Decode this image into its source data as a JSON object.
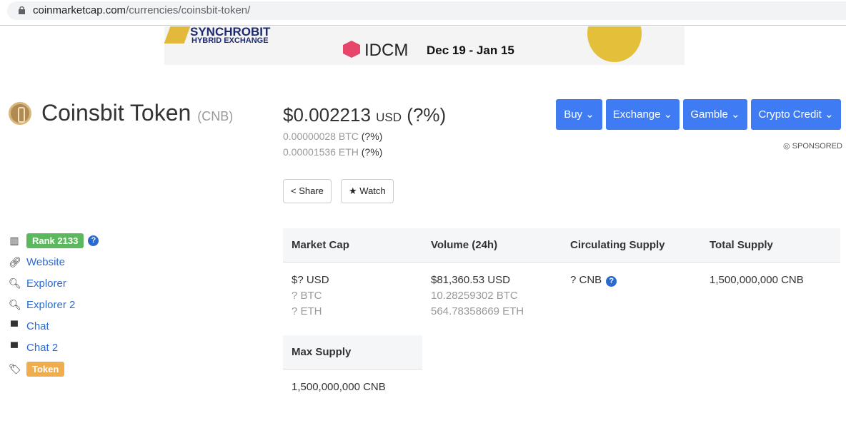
{
  "browser": {
    "url_host": "coinmarketcap.com",
    "url_path": "/currencies/coinsbit-token/"
  },
  "banner": {
    "brand1": "SYNCHROBIT",
    "brand1_sub": "HYBRID EXCHANGE",
    "brand2": "IDCM",
    "dates": "Dec 19 - Jan 15"
  },
  "coin": {
    "name": "Coinsbit Token",
    "symbol": "(CNB)",
    "price": "$0.002213",
    "price_unit": "USD",
    "price_change": "(?%)",
    "btc": "0.00000028 BTC",
    "btc_change": "(?%)",
    "eth": "0.00001536 ETH",
    "eth_change": "(?%)"
  },
  "actions": {
    "share": "Share",
    "watch": "Watch"
  },
  "menu": [
    "Buy",
    "Exchange",
    "Gamble",
    "Crypto Credit"
  ],
  "sponsored": "SPONSORED",
  "links": {
    "rank": "Rank 2133",
    "website": "Website",
    "explorer": "Explorer",
    "explorer2": "Explorer 2",
    "chat": "Chat",
    "chat2": "Chat 2",
    "token": "Token"
  },
  "colors": {
    "rank": "#5cb85c",
    "token": "#f0ad4e",
    "button": "#3f7cf4"
  },
  "stats": {
    "headers": [
      "Market Cap",
      "Volume (24h)",
      "Circulating Supply",
      "Total Supply"
    ],
    "market_cap": [
      "$? USD",
      "? BTC",
      "? ETH"
    ],
    "volume": [
      "$81,360.53 USD",
      "10.28259302 BTC",
      "564.78358669 ETH"
    ],
    "circulating": "? CNB",
    "total": "1,500,000,000 CNB",
    "max_header": "Max Supply",
    "max": "1,500,000,000 CNB"
  }
}
